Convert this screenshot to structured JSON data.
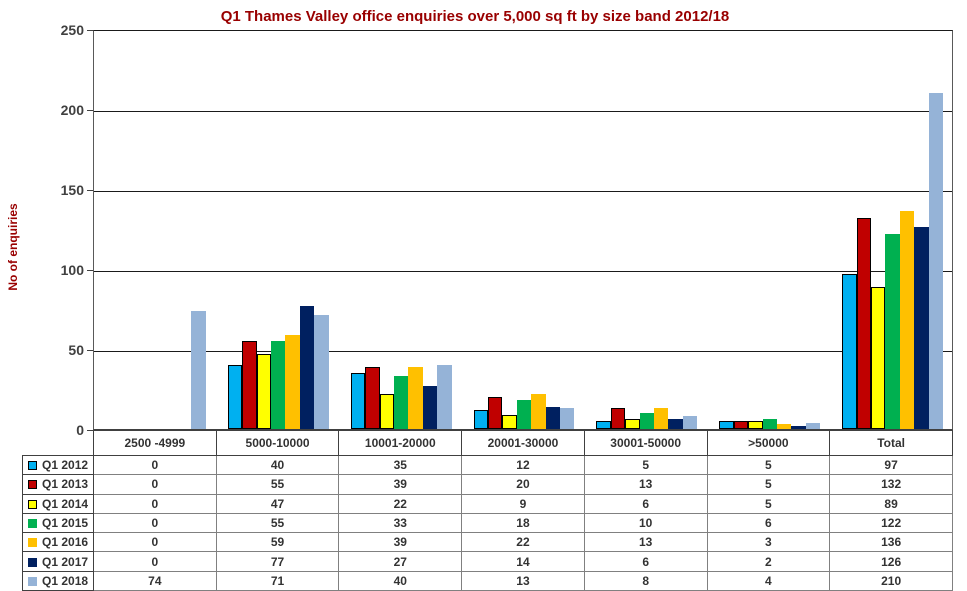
{
  "chart": {
    "title": "Q1 Thames Valley office enquiries over 5,000 sq ft by size band 2012/18",
    "y_axis_title": "No of enquiries",
    "y_ticks": [
      0,
      50,
      100,
      150,
      200,
      250
    ]
  },
  "chart_data": {
    "type": "bar",
    "title": "Q1 Thames Valley office enquiries over 5,000 sq ft by size band 2012/18",
    "xlabel": "",
    "ylabel": "No of enquiries",
    "ylim": [
      0,
      250
    ],
    "grid": true,
    "legend_position": "data-table-left",
    "categories": [
      "2500 -4999",
      "5000-10000",
      "10001-20000",
      "20001-30000",
      "30001-50000",
      ">50000",
      "Total"
    ],
    "series": [
      {
        "name": "Q1 2012",
        "color": "#00B0F0",
        "border": "#000000",
        "values": [
          0,
          40,
          35,
          12,
          5,
          5,
          97
        ]
      },
      {
        "name": "Q1 2013",
        "color": "#C00000",
        "border": "#000000",
        "values": [
          0,
          55,
          39,
          20,
          13,
          5,
          132
        ]
      },
      {
        "name": "Q1 2014",
        "color": "#FFFF00",
        "border": "#000000",
        "values": [
          0,
          47,
          22,
          9,
          6,
          5,
          89
        ]
      },
      {
        "name": "Q1 2015",
        "color": "#00B050",
        "border": null,
        "values": [
          0,
          55,
          33,
          18,
          10,
          6,
          122
        ]
      },
      {
        "name": "Q1 2016",
        "color": "#FFC000",
        "border": null,
        "values": [
          0,
          59,
          39,
          22,
          13,
          3,
          136
        ]
      },
      {
        "name": "Q1 2017",
        "color": "#002060",
        "border": null,
        "values": [
          0,
          77,
          27,
          14,
          6,
          2,
          126
        ]
      },
      {
        "name": "Q1 2018",
        "color": "#95B3D7",
        "border": null,
        "values": [
          74,
          71,
          40,
          13,
          8,
          4,
          210
        ]
      }
    ]
  },
  "colors": {
    "title_text": "#990000",
    "axis_text": "#404040",
    "gridline": "#1A1A1A",
    "table_border_dark": "#404040",
    "table_border_light": "#808080"
  }
}
